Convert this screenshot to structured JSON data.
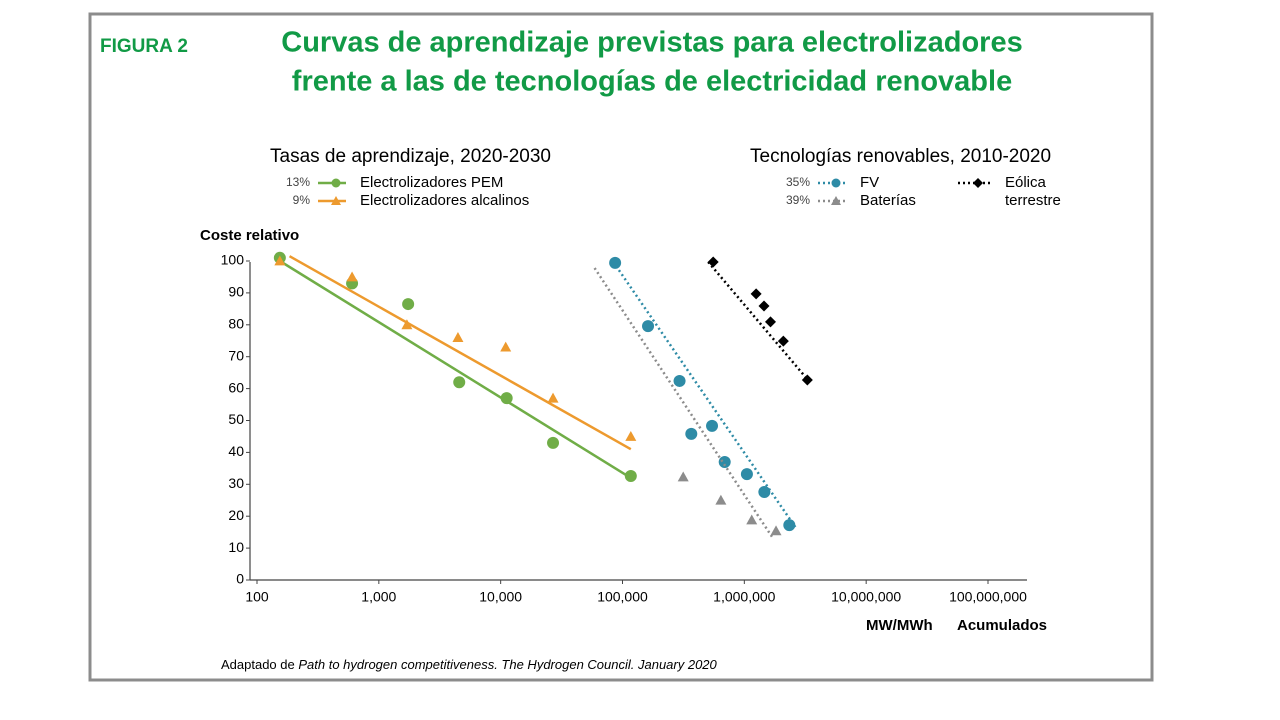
{
  "chart_data": {
    "type": "scatter",
    "label": "FIGURA 2",
    "title": [
      "Curvas de aprendizaje previstas para electrolizadores",
      "frente a las de tecnologías de electricidad renovable"
    ],
    "ylabel": "Coste relativo",
    "xlabel": [
      "MW/MWh",
      "Acumulados"
    ],
    "source": [
      "Adaptado de",
      "Path to hydrogen competitiveness. The Hydrogen Council. January 2020"
    ],
    "xscale": "log",
    "xlim": [
      100,
      100000000
    ],
    "xticks": [
      100,
      {
        "value": 1000,
        "label": "1,000"
      },
      {
        "value": 10000,
        "label": "10,000"
      },
      {
        "value": 100000,
        "label": "100,000"
      },
      {
        "value": 1000000,
        "label": "1,000,000"
      },
      {
        "value": 10000000,
        "label": "10,000,000"
      },
      {
        "value": 100000000,
        "label": "100,000,000"
      }
    ],
    "ylim": [
      0,
      100
    ],
    "yticks": [
      0,
      10,
      20,
      30,
      40,
      50,
      60,
      70,
      80,
      90,
      100
    ],
    "groups": [
      {
        "title": "Tasas de aprendizaje, 2020-2030",
        "series": [
          {
            "name": "Electrolizadores PEM",
            "rate": {
              "value": 13,
              "label": "13%"
            },
            "color": "#70ad47",
            "marker": "circle",
            "line": "solid",
            "x": [
              154,
              603,
              1740,
              4570,
              11200,
              26900,
              117000
            ],
            "values": [
              101,
              93,
              86.5,
              62,
              57,
              43,
              32.6
            ],
            "trend": {
              "x": [
                154,
                117000
              ],
              "y": [
                100,
                32
              ]
            }
          },
          {
            "name": "Electrolizadores alcalinos",
            "rate": {
              "value": 9,
              "label": "9%"
            },
            "color": "#ed9a2e",
            "marker": "triangle",
            "line": "solid",
            "x": [
              154,
              603,
              1700,
              4460,
              11000,
              26900,
              117000
            ],
            "values": [
              100,
              95,
              80,
              76,
              73,
              57,
              45
            ],
            "trend": {
              "x": [
                185,
                117000
              ],
              "y": [
                101.5,
                41
              ]
            }
          }
        ]
      },
      {
        "title": "Tecnologías renovables, 2010-2020",
        "series": [
          {
            "name": "FV",
            "rate": {
              "value": 35,
              "label": "35%"
            },
            "color": "#2e8ba6",
            "marker": "circle",
            "line": "dotted",
            "x": [
              87000,
              162000,
              294000,
              367000,
              543000,
              690000,
              1050000,
              1460000,
              2340000
            ],
            "values": [
              99.4,
              79.6,
              62.4,
              45.8,
              48.3,
              37,
              33.2,
              27.6,
              17.2
            ],
            "trend": {
              "x": [
                84000,
                2620000
              ],
              "y": [
                99.7,
                16.6
              ]
            }
          },
          {
            "name": "Baterías",
            "rate": {
              "value": 39,
              "label": "39%"
            },
            "color": "#8c8c8c",
            "marker": "triangle",
            "line": "dotted",
            "x": [
              315000,
              642000,
              1150000,
              1820000
            ],
            "values": [
              32.3,
              25,
              18.8,
              15.4
            ],
            "trend": {
              "x": [
                59000,
                1690000
              ],
              "y": [
                97.8,
                13.5
              ]
            }
          },
          {
            "name": "Eólica terrestre",
            "color": "#000000",
            "marker": "diamond",
            "line": "dotted",
            "x": [
              555000,
              1250000,
              1450000,
              1640000,
              2090000,
              3290000
            ],
            "values": [
              99.7,
              89.7,
              85.9,
              80.9,
              74.9,
              62.7
            ],
            "trend": {
              "x": [
                505000,
                3450000
              ],
              "y": [
                99.7,
                62
              ]
            }
          }
        ]
      }
    ]
  }
}
